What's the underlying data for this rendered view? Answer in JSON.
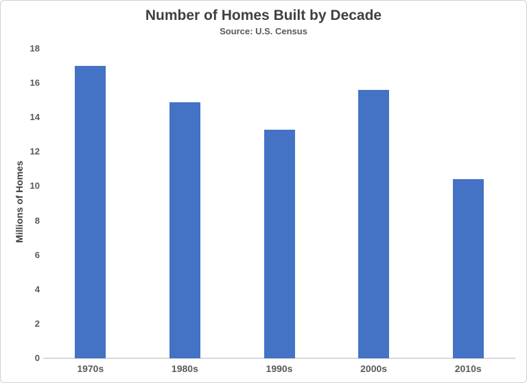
{
  "chart_data": {
    "type": "bar",
    "title": "Number of Homes Built by Decade",
    "subtitle": "Source: U.S. Census",
    "ylabel": "Millions of Homes",
    "xlabel": "",
    "categories": [
      "1970s",
      "1980s",
      "1990s",
      "2000s",
      "2010s"
    ],
    "values": [
      17.0,
      14.9,
      13.3,
      15.6,
      10.4
    ],
    "ylim": [
      0,
      18
    ],
    "ytick_step": 2,
    "bar_color": "#4472C4",
    "grid": "off",
    "legend": "none"
  }
}
